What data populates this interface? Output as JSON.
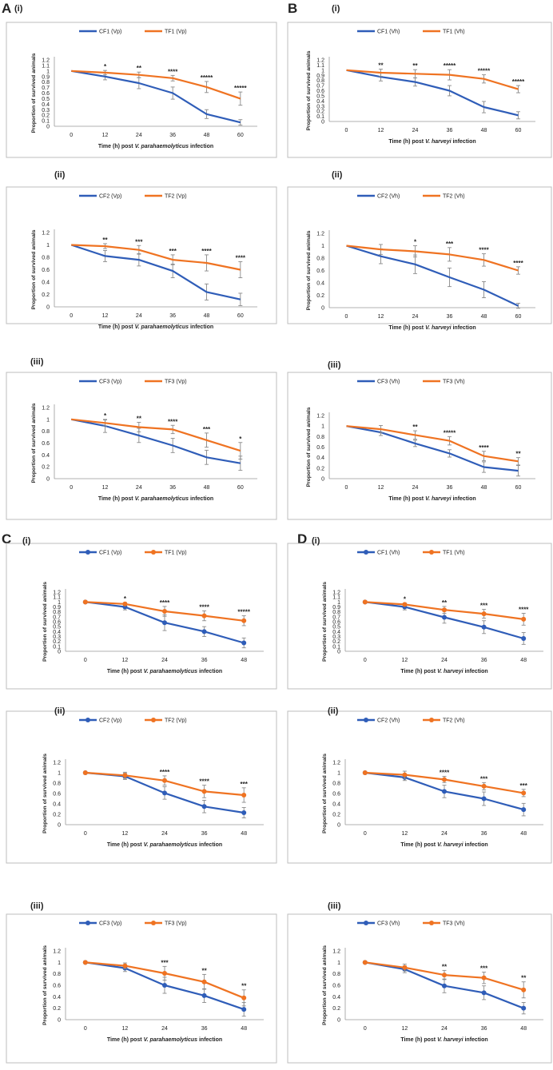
{
  "colors": {
    "control": "#2f5db8",
    "treated": "#ef7322",
    "error": "#8a8a8a",
    "frame": "#bdbdbd",
    "text": "#222222"
  },
  "panel_letters": [
    "A",
    "B",
    "C",
    "D"
  ],
  "ylabel": "Proportion of survived animals",
  "chart_data": [
    {
      "type": "line",
      "panel": "A",
      "sub": "(i)",
      "series": [
        {
          "name": "CF1 (Vp)",
          "values": [
            1,
            0.9,
            0.78,
            0.6,
            0.22,
            0.07
          ],
          "errors": [
            0,
            0.06,
            0.1,
            0.11,
            0.08,
            0.05
          ]
        },
        {
          "name": "TF1 (Vp)",
          "values": [
            1,
            0.97,
            0.93,
            0.87,
            0.71,
            0.5
          ],
          "errors": [
            0,
            0.04,
            0.05,
            0.05,
            0.1,
            0.12
          ]
        }
      ],
      "x": [
        0,
        12,
        24,
        36,
        48,
        60
      ],
      "sig": [
        "",
        "*",
        "**",
        "****",
        "*****",
        "*****"
      ],
      "xlabel_pre": "Time (h) post ",
      "xlabel_it": "V. parahaemolyticus",
      "xlabel_post": " infection",
      "ylim": [
        0,
        1.2
      ],
      "yticks": [
        "0",
        "0.1",
        "0.2",
        "0.3",
        "0.4",
        "0.5",
        "0.6",
        "0.7",
        "0.8",
        "0.9",
        "1",
        "1.1",
        "1.2"
      ],
      "xlabels": [
        "0",
        "12",
        "24",
        "36",
        "48",
        "60"
      ],
      "markers": false
    },
    {
      "type": "line",
      "panel": "B",
      "sub": "(i)",
      "series": [
        {
          "name": "CF1 (Vh)",
          "values": [
            1,
            0.87,
            0.77,
            0.6,
            0.28,
            0.12
          ],
          "errors": [
            0,
            0.08,
            0.08,
            0.1,
            0.11,
            0.07
          ]
        },
        {
          "name": "TF1 (Vh)",
          "values": [
            1,
            0.95,
            0.93,
            0.91,
            0.83,
            0.63
          ],
          "errors": [
            0,
            0.07,
            0.08,
            0.1,
            0.08,
            0.07
          ]
        }
      ],
      "x": [
        0,
        12,
        24,
        36,
        48,
        60
      ],
      "sig": [
        "",
        "**",
        "**",
        "*****",
        "*****",
        "*****"
      ],
      "xlabel_pre": "Time (h) post ",
      "xlabel_it": "V. harveyi",
      "xlabel_post": " infection",
      "ylim": [
        0,
        1.2
      ],
      "yticks": [
        "0",
        "0.1",
        "0.2",
        "0.3",
        "0.4",
        "0.5",
        "0.6",
        "0.7",
        "0.8",
        "0.9",
        "1",
        "1.1",
        "1.2"
      ],
      "xlabels": [
        "0",
        "12",
        "24",
        "36",
        "48",
        "60"
      ],
      "markers": false
    },
    {
      "type": "line",
      "panel": "A",
      "sub": "(ii)",
      "series": [
        {
          "name": "CF2 (Vp)",
          "values": [
            1,
            0.82,
            0.76,
            0.58,
            0.24,
            0.12
          ],
          "errors": [
            0,
            0.09,
            0.1,
            0.11,
            0.13,
            0.1
          ]
        },
        {
          "name": "TF2 (Vp)",
          "values": [
            1,
            0.98,
            0.92,
            0.76,
            0.71,
            0.6
          ],
          "errors": [
            0,
            0.04,
            0.07,
            0.08,
            0.13,
            0.13
          ]
        }
      ],
      "x": [
        0,
        12,
        24,
        36,
        48,
        60
      ],
      "sig": [
        "",
        "**",
        "***",
        "***",
        "****",
        "****"
      ],
      "xlabel_pre": "Time (h) post ",
      "xlabel_it": "V. parahaemolyticus",
      "xlabel_post": " infection",
      "ylim": [
        0,
        1.2
      ],
      "yticks": [
        "0",
        "0.2",
        "0.4",
        "0.6",
        "0.8",
        "1",
        "1.2"
      ],
      "xlabels": [
        "0",
        "12",
        "24",
        "36",
        "48",
        "60"
      ],
      "markers": false
    },
    {
      "type": "line",
      "panel": "B",
      "sub": "(ii)",
      "series": [
        {
          "name": "CF2 (Vh)",
          "values": [
            1,
            0.83,
            0.7,
            0.49,
            0.29,
            0.03
          ],
          "errors": [
            0,
            0.12,
            0.15,
            0.15,
            0.13,
            0.04
          ]
        },
        {
          "name": "TF2 (Vh)",
          "values": [
            1,
            0.94,
            0.91,
            0.86,
            0.77,
            0.6
          ],
          "errors": [
            0,
            0.08,
            0.09,
            0.11,
            0.1,
            0.06
          ]
        }
      ],
      "x": [
        0,
        12,
        24,
        36,
        48,
        60
      ],
      "sig": [
        "",
        "",
        "*",
        "***",
        "****",
        "****"
      ],
      "xlabel_pre": "Time (h) post ",
      "xlabel_it": "V. harveyi",
      "xlabel_post": " infection",
      "ylim": [
        0,
        1.2
      ],
      "yticks": [
        "0",
        "0.2",
        "0.4",
        "0.6",
        "0.8",
        "1",
        "1.2"
      ],
      "xlabels": [
        "0",
        "12",
        "24",
        "36",
        "48",
        "60"
      ],
      "markers": false
    },
    {
      "type": "line",
      "panel": "A",
      "sub": "(iii)",
      "series": [
        {
          "name": "CF3 (Vp)",
          "values": [
            1,
            0.89,
            0.73,
            0.56,
            0.36,
            0.26
          ],
          "errors": [
            0,
            0.11,
            0.12,
            0.12,
            0.12,
            0.12
          ]
        },
        {
          "name": "TF3 (Vp)",
          "values": [
            1,
            0.94,
            0.87,
            0.83,
            0.65,
            0.47
          ],
          "errors": [
            0,
            0.05,
            0.08,
            0.07,
            0.12,
            0.14
          ]
        }
      ],
      "x": [
        0,
        12,
        24,
        36,
        48,
        60
      ],
      "sig": [
        "",
        "*",
        "**",
        "****",
        "***",
        "*"
      ],
      "xlabel_pre": "Time (h) post ",
      "xlabel_it": "V. parahaemolyticus",
      "xlabel_post": " infection",
      "ylim": [
        0,
        1.2
      ],
      "yticks": [
        "0",
        "0.2",
        "0.4",
        "0.6",
        "0.8",
        "1",
        "1.2"
      ],
      "xlabels": [
        "0",
        "12",
        "24",
        "36",
        "48",
        "60"
      ],
      "markers": false
    },
    {
      "type": "line",
      "panel": "B",
      "sub": "(iii)",
      "series": [
        {
          "name": "CF3 (Vh)",
          "values": [
            1,
            0.88,
            0.67,
            0.48,
            0.22,
            0.15
          ],
          "errors": [
            0,
            0.06,
            0.06,
            0.07,
            0.1,
            0.1
          ]
        },
        {
          "name": "TF3 (Vh)",
          "values": [
            1,
            0.94,
            0.83,
            0.72,
            0.43,
            0.33
          ],
          "errors": [
            0,
            0.07,
            0.08,
            0.08,
            0.09,
            0.07
          ]
        }
      ],
      "x": [
        0,
        12,
        24,
        36,
        48,
        60
      ],
      "sig": [
        "",
        "",
        "**",
        "*****",
        "****",
        "**"
      ],
      "xlabel_pre": "Time (h) post ",
      "xlabel_it": "V. harveyi",
      "xlabel_post": " infection",
      "ylim": [
        0,
        1.2
      ],
      "yticks": [
        "0",
        "0.2",
        "0.4",
        "0.6",
        "0.8",
        "1",
        "1.2"
      ],
      "xlabels": [
        "0",
        "12",
        "24",
        "36",
        "48",
        "60"
      ],
      "markers": false
    },
    {
      "type": "line",
      "panel": "C",
      "sub": "(i)",
      "series": [
        {
          "name": "CF1 (Vp)",
          "values": [
            1,
            0.9,
            0.58,
            0.4,
            0.17
          ],
          "errors": [
            0,
            0.06,
            0.16,
            0.1,
            0.1
          ]
        },
        {
          "name": "TF1 (Vp)",
          "values": [
            1,
            0.96,
            0.81,
            0.72,
            0.62
          ],
          "errors": [
            0,
            0.03,
            0.1,
            0.1,
            0.1
          ]
        }
      ],
      "x": [
        0,
        12,
        24,
        36,
        48
      ],
      "sig": [
        "",
        "*",
        "****",
        "****",
        "*****"
      ],
      "xlabel_pre": "Time (h) post ",
      "xlabel_it": "V. parahaemolyticus",
      "xlabel_post": " infection",
      "ylim": [
        0,
        1.2
      ],
      "yticks": [
        "0",
        "0.1",
        "0.2",
        "0.3",
        "0.4",
        "0.5",
        "0.6",
        "0.7",
        "0.8",
        "0.9",
        "1",
        "1.1",
        "1.2"
      ],
      "xlabels": [
        "0",
        "12",
        "24",
        "36",
        "48"
      ],
      "markers": true
    },
    {
      "type": "line",
      "panel": "D",
      "sub": "(i)",
      "series": [
        {
          "name": "CF1 (Vh)",
          "values": [
            1,
            0.9,
            0.69,
            0.49,
            0.26
          ],
          "errors": [
            0,
            0.06,
            0.12,
            0.13,
            0.12
          ]
        },
        {
          "name": "TF1 (Vh)",
          "values": [
            1,
            0.95,
            0.84,
            0.76,
            0.65
          ],
          "errors": [
            0,
            0.03,
            0.07,
            0.09,
            0.12
          ]
        }
      ],
      "x": [
        0,
        12,
        24,
        36,
        48
      ],
      "sig": [
        "",
        "*",
        "**",
        "***",
        "****"
      ],
      "xlabel_pre": "Time (h) post ",
      "xlabel_it": "V. harveyi",
      "xlabel_post": " infection",
      "ylim": [
        0,
        1.2
      ],
      "yticks": [
        "0",
        "0.1",
        "0.2",
        "0.3",
        "0.4",
        "0.5",
        "0.6",
        "0.7",
        "0.8",
        "0.9",
        "1",
        "1.1",
        "1.2"
      ],
      "xlabels": [
        "0",
        "12",
        "24",
        "36",
        "48"
      ],
      "markers": true
    },
    {
      "type": "line",
      "panel": "C",
      "sub": "(ii)",
      "series": [
        {
          "name": "CF2 (Vp)",
          "values": [
            1,
            0.93,
            0.61,
            0.35,
            0.23
          ],
          "errors": [
            0,
            0.06,
            0.12,
            0.12,
            0.1
          ]
        },
        {
          "name": "TF2 (Vp)",
          "values": [
            1,
            0.95,
            0.85,
            0.64,
            0.57
          ],
          "errors": [
            0,
            0.06,
            0.09,
            0.12,
            0.14
          ]
        }
      ],
      "x": [
        0,
        12,
        24,
        36,
        48
      ],
      "sig": [
        "",
        "",
        "****",
        "****",
        "***"
      ],
      "xlabel_pre": "Time (h) post ",
      "xlabel_it": "V. parahaemolyticus",
      "xlabel_post": " infection",
      "ylim": [
        0,
        1.2
      ],
      "yticks": [
        "0",
        "0.2",
        "0.4",
        "0.6",
        "0.8",
        "1",
        "1.2"
      ],
      "xlabels": [
        "0",
        "12",
        "24",
        "36",
        "48"
      ],
      "markers": true
    },
    {
      "type": "line",
      "panel": "D",
      "sub": "(ii)",
      "series": [
        {
          "name": "CF2 (Vh)",
          "values": [
            1,
            0.91,
            0.64,
            0.5,
            0.29
          ],
          "errors": [
            0,
            0.06,
            0.12,
            0.13,
            0.12
          ]
        },
        {
          "name": "TF2 (Vh)",
          "values": [
            1,
            0.96,
            0.87,
            0.74,
            0.61
          ],
          "errors": [
            0,
            0.07,
            0.06,
            0.07,
            0.07
          ]
        }
      ],
      "x": [
        0,
        12,
        24,
        36,
        48
      ],
      "sig": [
        "",
        "",
        "****",
        "***",
        "***"
      ],
      "xlabel_pre": "Time (h) post ",
      "xlabel_it": "V. harveyi",
      "xlabel_post": " infection",
      "ylim": [
        0,
        1.2
      ],
      "yticks": [
        "0",
        "0.2",
        "0.4",
        "0.6",
        "0.8",
        "1",
        "1.2"
      ],
      "xlabels": [
        "0",
        "12",
        "24",
        "36",
        "48"
      ],
      "markers": true
    },
    {
      "type": "line",
      "panel": "C",
      "sub": "(iii)",
      "series": [
        {
          "name": "CF3 (Vp)",
          "values": [
            1,
            0.9,
            0.6,
            0.42,
            0.18
          ],
          "errors": [
            0,
            0.06,
            0.14,
            0.12,
            0.12
          ]
        },
        {
          "name": "TF3 (Vp)",
          "values": [
            1,
            0.94,
            0.81,
            0.66,
            0.38
          ],
          "errors": [
            0,
            0.05,
            0.12,
            0.13,
            0.14
          ]
        }
      ],
      "x": [
        0,
        12,
        24,
        36,
        48
      ],
      "sig": [
        "",
        "",
        "***",
        "**",
        "**"
      ],
      "xlabel_pre": "Time (h) post ",
      "xlabel_it": "V. parahaemolyticus",
      "xlabel_post": " infection",
      "ylim": [
        0,
        1.2
      ],
      "yticks": [
        "0",
        "0.2",
        "0.4",
        "0.6",
        "0.8",
        "1",
        "1.2"
      ],
      "xlabels": [
        "0",
        "12",
        "24",
        "36",
        "48"
      ],
      "markers": true
    },
    {
      "type": "line",
      "panel": "D",
      "sub": "(iii)",
      "series": [
        {
          "name": "CF3 (Vh)",
          "values": [
            1,
            0.88,
            0.59,
            0.47,
            0.2
          ],
          "errors": [
            0,
            0.06,
            0.12,
            0.12,
            0.1
          ]
        },
        {
          "name": "TF3 (Vh)",
          "values": [
            1,
            0.91,
            0.78,
            0.73,
            0.52
          ],
          "errors": [
            0,
            0.06,
            0.08,
            0.1,
            0.14
          ]
        }
      ],
      "x": [
        0,
        12,
        24,
        36,
        48
      ],
      "sig": [
        "",
        "",
        "**",
        "***",
        "**"
      ],
      "xlabel_pre": "Time (h) post ",
      "xlabel_it": "V. harveyi",
      "xlabel_post": " infection",
      "ylim": [
        0,
        1.2
      ],
      "yticks": [
        "0",
        "0.2",
        "0.4",
        "0.6",
        "0.8",
        "1",
        "1.2"
      ],
      "xlabels": [
        "0",
        "12",
        "24",
        "36",
        "48"
      ],
      "markers": true
    }
  ]
}
